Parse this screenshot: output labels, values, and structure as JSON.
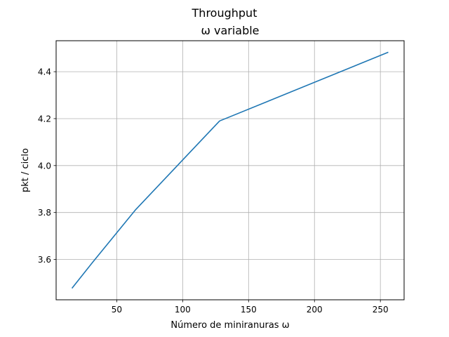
{
  "chart_data": {
    "type": "line",
    "title": "Throughput",
    "subtitle": "ω variable",
    "xlabel": "Número de miniranuras ω",
    "ylabel": "pkt / ciclo",
    "xlim": [
      4,
      268
    ],
    "ylim": [
      3.428,
      4.532
    ],
    "xticks": [
      50,
      100,
      150,
      200,
      250
    ],
    "yticks": [
      3.6,
      3.8,
      4.0,
      4.2,
      4.4
    ],
    "xtick_labels": [
      "50",
      "100",
      "150",
      "200",
      "250"
    ],
    "ytick_labels": [
      "3.6",
      "3.8",
      "4.0",
      "4.2",
      "4.4"
    ],
    "grid": true,
    "series": [
      {
        "color": "#1f77b4",
        "x": [
          16,
          32,
          64,
          128,
          256
        ],
        "y": [
          3.477,
          3.59,
          3.81,
          4.19,
          4.483
        ]
      }
    ]
  }
}
